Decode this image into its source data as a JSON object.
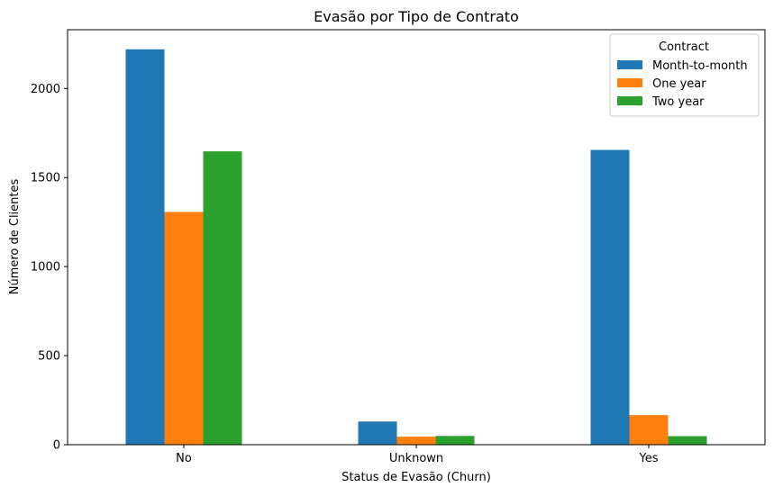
{
  "chart_data": {
    "type": "bar",
    "title": "Evasão por Tipo de Contrato",
    "xlabel": "Status de Evasão (Churn)",
    "ylabel": "Número de Clientes",
    "categories": [
      "No",
      "Unknown",
      "Yes"
    ],
    "series": [
      {
        "name": "Month-to-month",
        "values": [
          2220,
          130,
          1655
        ],
        "color": "#1f77b4"
      },
      {
        "name": "One year",
        "values": [
          1307,
          45,
          166
        ],
        "color": "#ff7f0e"
      },
      {
        "name": "Two year",
        "values": [
          1647,
          49,
          48
        ],
        "color": "#2ca02c"
      }
    ],
    "yticks": [
      0,
      500,
      1000,
      1500,
      2000
    ],
    "ylim": [
      0,
      2330
    ],
    "legend": {
      "title": "Contract",
      "position": "top-right"
    },
    "grid": false
  }
}
